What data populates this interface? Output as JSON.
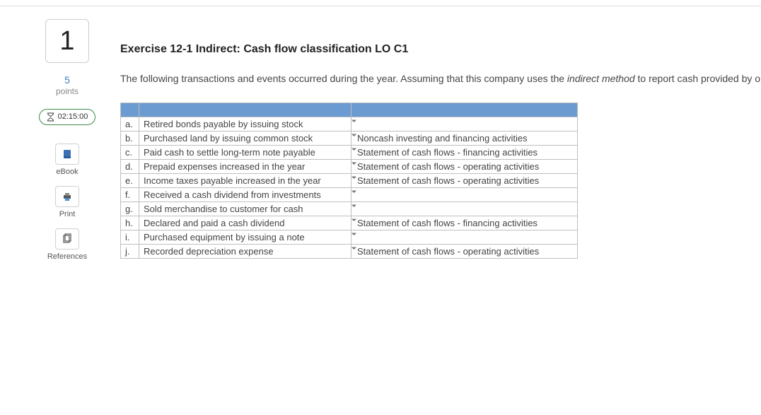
{
  "question_number": "1",
  "points_value": "5",
  "points_label": "points",
  "timer": "02:15:00",
  "tools": {
    "ebook": "eBook",
    "print": "Print",
    "references": "References"
  },
  "title": "Exercise 12-1 Indirect: Cash flow classification LO C1",
  "desc_pre": "The following transactions and events occurred during the year. Assuming that this company uses the ",
  "desc_em": "indirect method",
  "desc_post": " to report cash provided by operating activities, select where each item would appear on its statement of cash flows.",
  "rows": [
    {
      "letter": "a.",
      "desc": "Retired bonds payable by issuing stock",
      "answer": ""
    },
    {
      "letter": "b.",
      "desc": "Purchased land by issuing common stock",
      "answer": "Noncash investing and financing activities"
    },
    {
      "letter": "c.",
      "desc": "Paid cash to settle long-term note payable",
      "answer": "Statement of cash flows - financing activities"
    },
    {
      "letter": "d.",
      "desc": "Prepaid expenses increased in the year",
      "answer": "Statement of cash flows - operating activities"
    },
    {
      "letter": "e.",
      "desc": "Income taxes payable increased in the year",
      "answer": "Statement of cash flows - operating activities"
    },
    {
      "letter": "f.",
      "desc": "Received a cash dividend from investments",
      "answer": ""
    },
    {
      "letter": "g.",
      "desc": "Sold merchandise to customer for cash",
      "answer": ""
    },
    {
      "letter": "h.",
      "desc": "Declared and paid a cash dividend",
      "answer": "Statement of cash flows - financing activities"
    },
    {
      "letter": "i.",
      "desc": "Purchased equipment by issuing a note",
      "answer": ""
    },
    {
      "letter": "j.",
      "desc": "Recorded depreciation expense",
      "answer": "Statement of cash flows - operating activities"
    }
  ],
  "colors": {
    "header_bg": "#6b9bd1",
    "border": "#bfbfbf",
    "link": "#3b7bbf",
    "timer_border": "#3a8a4a"
  }
}
